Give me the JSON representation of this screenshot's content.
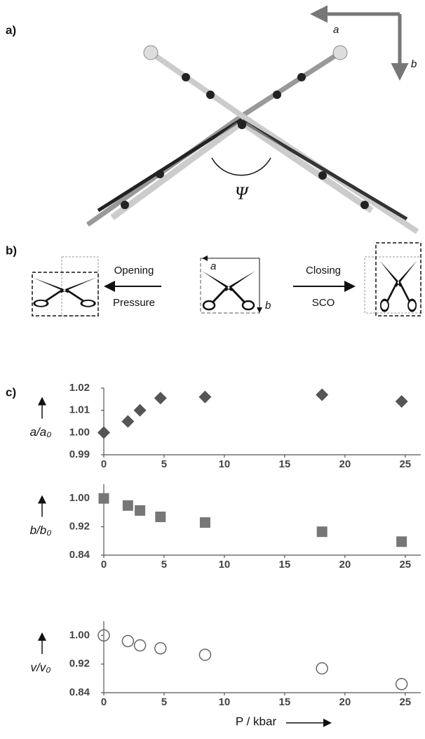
{
  "figure": {
    "panel_a": {
      "label": "a)",
      "axis_a": "a",
      "axis_b": "b",
      "angle": "Ψ"
    },
    "panel_b": {
      "label": "b)",
      "cell_a": "a",
      "cell_b": "b",
      "left_top": "Opening",
      "left_bottom": "Pressure",
      "right_top": "Closing",
      "right_bottom": "SCO"
    },
    "panel_c": {
      "label": "c)"
    }
  },
  "chart_data": [
    {
      "type": "scatter",
      "ylabel": "a/a₀",
      "marker": "diamond",
      "color": "#555555",
      "x": [
        0,
        2,
        3,
        4.7,
        8.4,
        18.1,
        24.7
      ],
      "values": [
        1.0,
        1.005,
        1.01,
        1.0155,
        1.016,
        1.017,
        1.014
      ],
      "xlim": [
        0,
        26
      ],
      "xticks": [
        0,
        5,
        10,
        15,
        20,
        25
      ],
      "ylim": [
        0.99,
        1.02
      ],
      "yticks": [
        0.99,
        {
          "value": 1.0,
          "label": "1.00"
        },
        1.01,
        1.02
      ]
    },
    {
      "type": "scatter",
      "ylabel": "b/b₀",
      "marker": "square",
      "color": "#777777",
      "x": [
        0,
        2,
        3,
        4.7,
        8.4,
        18.1,
        24.7
      ],
      "values": [
        1.0,
        0.98,
        0.966,
        0.948,
        0.932,
        0.906,
        0.878
      ],
      "xlim": [
        0,
        26
      ],
      "xticks": [
        0,
        5,
        10,
        15,
        20,
        25
      ],
      "ylim": [
        0.84,
        1.04
      ],
      "yticks": [
        0.84,
        0.92,
        {
          "value": 1.0,
          "label": "1.00"
        }
      ]
    },
    {
      "type": "scatter",
      "ylabel": "v/v₀",
      "marker": "open-circle",
      "color": "#666666",
      "x": [
        0,
        2,
        3,
        4.7,
        8.4,
        18.1,
        24.7
      ],
      "values": [
        1.0,
        0.984,
        0.972,
        0.964,
        0.946,
        0.908,
        0.864
      ],
      "xlim": [
        0,
        26
      ],
      "xticks": [
        0,
        5,
        10,
        15,
        20,
        25
      ],
      "ylim": [
        0.84,
        1.04
      ],
      "yticks": [
        0.84,
        0.92,
        {
          "value": 1.0,
          "label": "1.00"
        }
      ],
      "xlabel": "P / kbar"
    }
  ]
}
